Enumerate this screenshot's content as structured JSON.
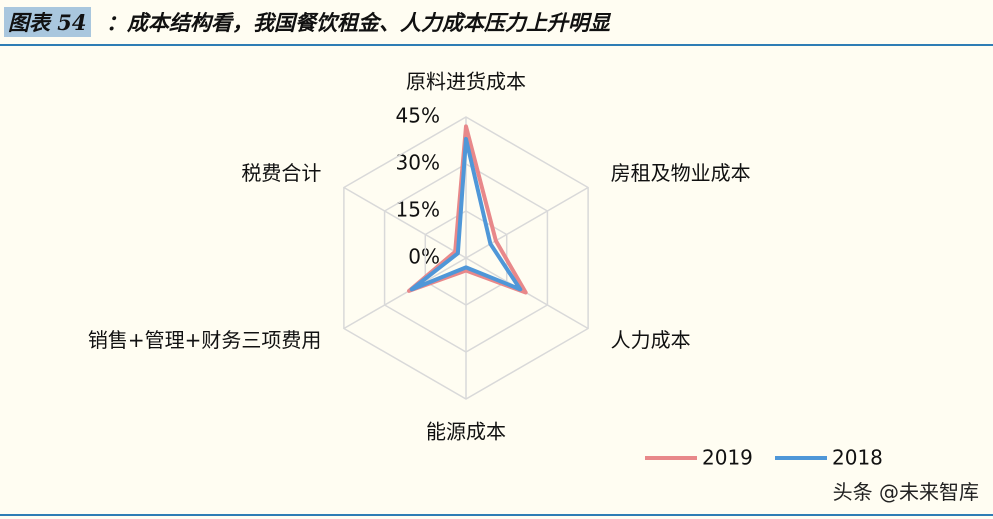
{
  "header": {
    "label": "图表 54",
    "title": "：成本结构看，我国餐饮租金、人力成本压力上升明显"
  },
  "chart_data": {
    "type": "radar",
    "categories": [
      "原料进货成本",
      "房租及物业成本",
      "人力成本",
      "能源成本",
      "销售+管理+财务三项费用",
      "税费合计"
    ],
    "series": [
      {
        "name": "2019",
        "color": "#e8888a",
        "values": [
          42,
          11,
          22,
          4,
          21,
          4
        ]
      },
      {
        "name": "2018",
        "color": "#4f97d8",
        "values": [
          38,
          9,
          20,
          3,
          20,
          3
        ]
      }
    ],
    "rlim": [
      0,
      45
    ],
    "rticks": [
      {
        "value": 0,
        "label": "0%"
      },
      {
        "value": 15,
        "label": "15%"
      },
      {
        "value": 30,
        "label": "30%"
      },
      {
        "value": 45,
        "label": "45%"
      }
    ],
    "grid": true
  },
  "watermark": "头条 @未来智库"
}
